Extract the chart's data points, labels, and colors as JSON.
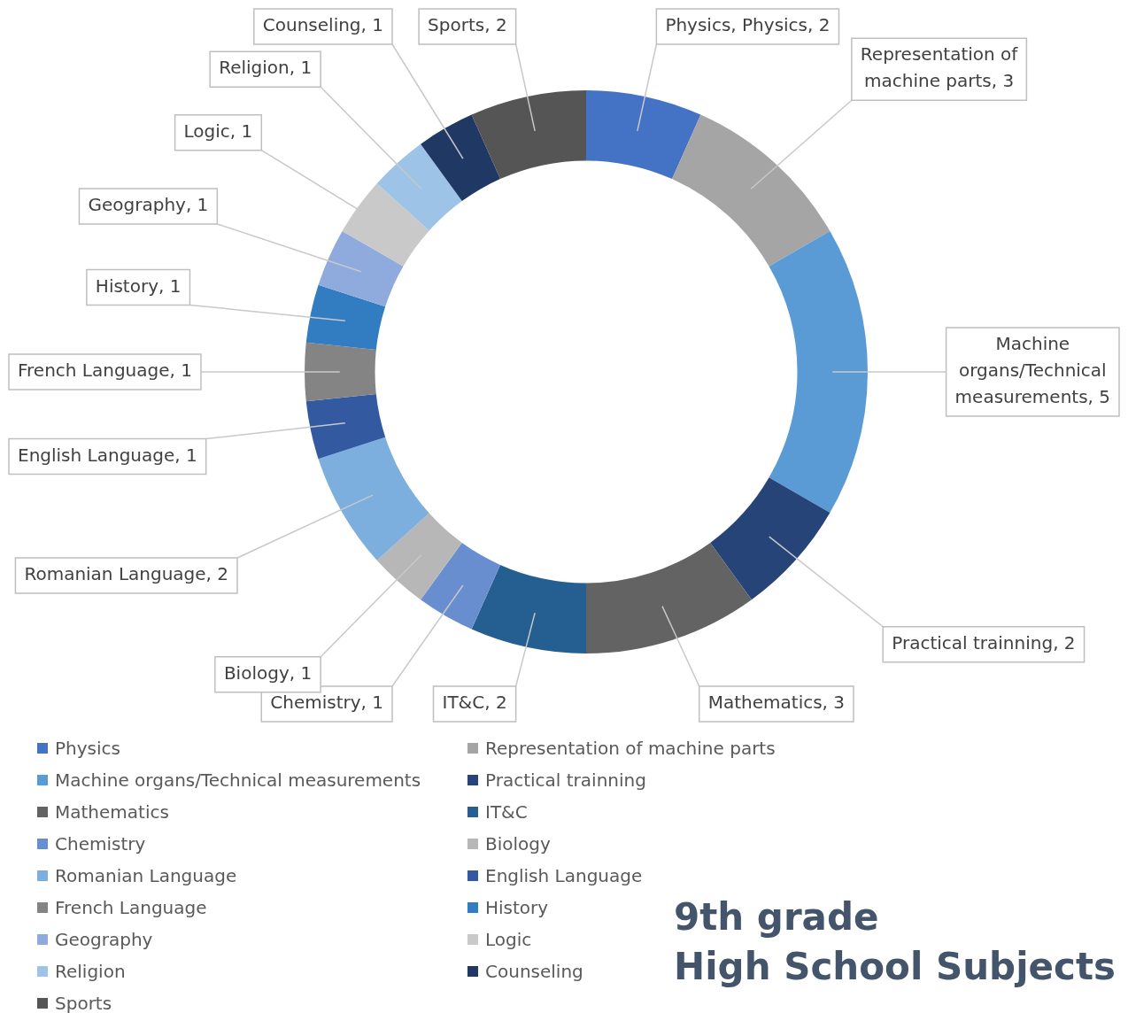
{
  "chart_data": {
    "type": "donut",
    "title": "9th grade\nHigh School Subjects",
    "categories": [
      "Physics",
      "Representation of machine parts",
      "Machine organs/Technical measurements",
      "Practical trainning",
      "Mathematics",
      "IT&C",
      "Chemistry",
      "Biology",
      "Romanian Language",
      "English Language",
      "French Language",
      "History",
      "Geography",
      "Logic",
      "Religion",
      "Counseling",
      "Sports"
    ],
    "values": [
      2,
      3,
      5,
      2,
      3,
      2,
      1,
      1,
      2,
      1,
      1,
      1,
      1,
      1,
      1,
      1,
      2
    ],
    "colors": [
      "#4472c4",
      "#a5a5a5",
      "#5b9bd5",
      "#264478",
      "#636363",
      "#255e91",
      "#698ed0",
      "#b7b7b7",
      "#7cafdd",
      "#335aa1",
      "#848484",
      "#327dc2",
      "#8faadc",
      "#c9c9c9",
      "#9dc3e6",
      "#203864",
      "#555555"
    ],
    "value_labels": [
      "Physics, Physics, 2",
      "Representation of machine parts, 3",
      "Machine organs/Technical measurements, 5",
      "Practical trainning, 2",
      "Mathematics, 3",
      "IT&C, 2",
      "Chemistry, 1",
      "Biology, 1",
      "Romanian Language, 2",
      "English Language, 1",
      "French Language, 1",
      "History, 1",
      "Geography, 1",
      "Logic, 1",
      "Religion, 1",
      "Counseling, 1",
      "Sports, 2"
    ],
    "legend": "bottom"
  }
}
